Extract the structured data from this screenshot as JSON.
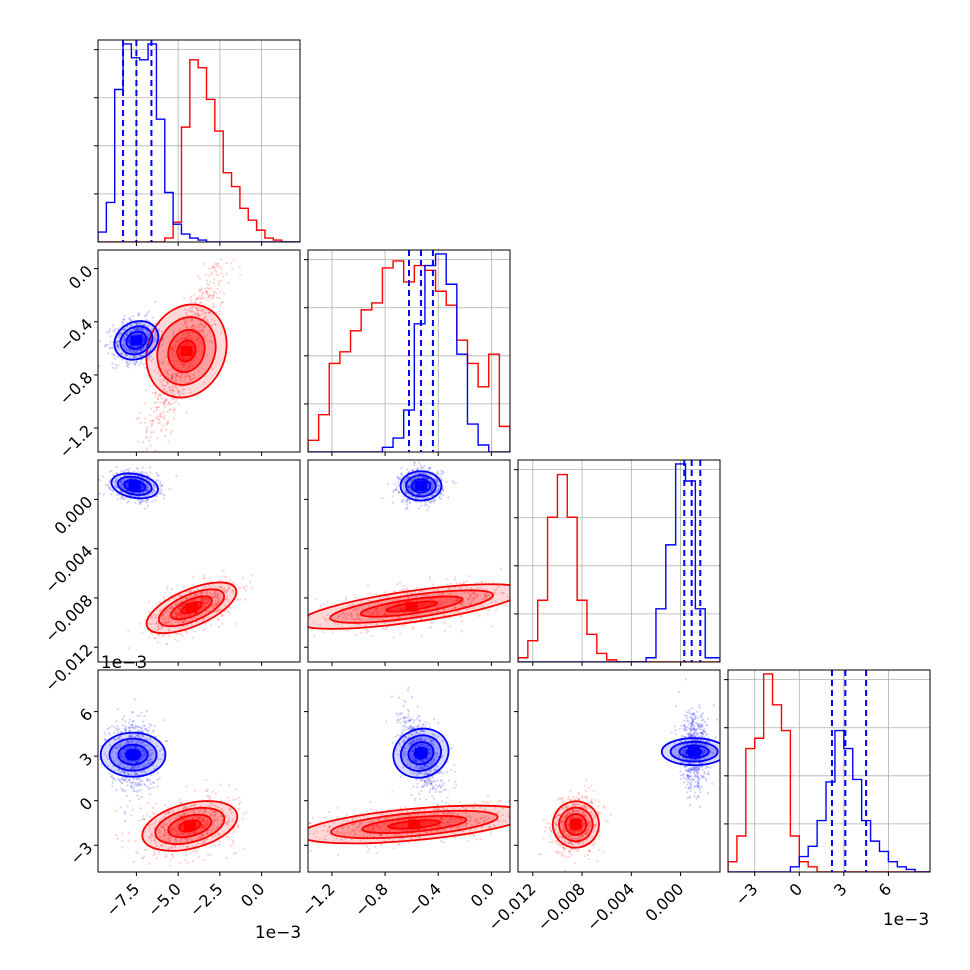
{
  "figure": {
    "description_type": "corner",
    "series_colors": {
      "red": "#ff0000",
      "blue": "#0000ff"
    },
    "quantile_line_color": "#0000ff"
  },
  "chart_data": {
    "type": "corner",
    "series": [
      {
        "name": "red",
        "color": "#ff0000"
      },
      {
        "name": "blue",
        "color": "#0000ff"
      }
    ],
    "parameters": [
      {
        "id": "p0",
        "xlim": [
          -0.0098,
          0.0023
        ],
        "ylim": [
          -1.38,
          0.14
        ],
        "ticks_x": [
          -0.0075,
          -0.005,
          -0.0025,
          0.0
        ],
        "tick_labels_x": [
          "−7.5",
          "−5.0",
          "−2.5",
          "0.0"
        ],
        "offset_label": "1e−3"
      },
      {
        "id": "p1",
        "xlim": [
          -1.38,
          0.14
        ],
        "ticks": [
          -1.2,
          -0.8,
          -0.4,
          0.0
        ],
        "tick_labels": [
          "−1.2",
          "−0.8",
          "−0.4",
          "0.0"
        ]
      },
      {
        "id": "p2",
        "xlim": [
          -0.0132,
          0.0032
        ],
        "ticks": [
          -0.012,
          -0.008,
          -0.004,
          0.0
        ],
        "tick_labels": [
          "−0.012",
          "−0.008",
          "−0.004",
          "0.000"
        ]
      },
      {
        "id": "p3",
        "xlim": [
          -0.0048,
          0.0088
        ],
        "ticks": [
          -0.003,
          0.0,
          0.003,
          0.006
        ],
        "tick_labels": [
          "−3",
          "0",
          "3",
          "6"
        ],
        "offset_label": "1e−3"
      }
    ],
    "offset_label_row3": "1e−3",
    "histograms": [
      {
        "param": 0,
        "bins": [
          -0.0098,
          -0.0093,
          -0.0088,
          -0.0083,
          -0.0078,
          -0.0073,
          -0.0068,
          -0.0063,
          -0.0058,
          -0.0053,
          -0.0048,
          -0.0043,
          -0.0038,
          -0.0033,
          -0.0028,
          -0.0023,
          -0.0018,
          -0.0013,
          -0.0008,
          -0.0003,
          0.0002,
          0.0007,
          0.0012,
          0.0017,
          0.0023
        ],
        "red": [
          0,
          0,
          0,
          0,
          0,
          0,
          0,
          0,
          0.02,
          0.1,
          0.58,
          0.92,
          0.88,
          0.72,
          0.56,
          0.35,
          0.28,
          0.17,
          0.11,
          0.06,
          0.02,
          0.01,
          0,
          0
        ],
        "blue": [
          0.05,
          0.2,
          0.77,
          1.0,
          0.93,
          0.92,
          1.0,
          0.62,
          0.25,
          0.09,
          0.04,
          0.02,
          0.01,
          0,
          0,
          0,
          0,
          0,
          0,
          0,
          0,
          0,
          0,
          0
        ],
        "quantiles_blue": [
          -0.0083,
          -0.0075,
          -0.0066
        ]
      },
      {
        "param": 1,
        "bins": [
          -1.38,
          -1.3,
          -1.22,
          -1.14,
          -1.06,
          -0.98,
          -0.9,
          -0.82,
          -0.74,
          -0.66,
          -0.58,
          -0.5,
          -0.42,
          -0.34,
          -0.26,
          -0.18,
          -0.1,
          -0.02,
          0.06,
          0.14
        ],
        "red": [
          0.05,
          0.16,
          0.38,
          0.43,
          0.52,
          0.61,
          0.64,
          0.79,
          0.82,
          0.73,
          0.8,
          0.78,
          0.69,
          0.63,
          0.48,
          0.38,
          0.28,
          0.42,
          0.11
        ],
        "blue": [
          0,
          0,
          0,
          0,
          0,
          0,
          0,
          0.02,
          0.06,
          0.18,
          0.55,
          0.8,
          0.85,
          0.72,
          0.42,
          0.12,
          0.03,
          0,
          0
        ],
        "quantiles_blue": [
          -0.62,
          -0.53,
          -0.44
        ]
      },
      {
        "param": 2,
        "bins": [
          -0.0132,
          -0.0124,
          -0.0116,
          -0.0108,
          -0.01,
          -0.0092,
          -0.0084,
          -0.0076,
          -0.0068,
          -0.006,
          -0.0052,
          -0.0044,
          -0.0036,
          -0.0028,
          -0.002,
          -0.0012,
          -0.0004,
          0.0004,
          0.0012,
          0.002,
          0.0032
        ],
        "red": [
          0.02,
          0.1,
          0.29,
          0.68,
          0.88,
          0.68,
          0.29,
          0.13,
          0.04,
          0.01,
          0,
          0,
          0,
          0,
          0,
          0,
          0,
          0,
          0,
          0
        ],
        "blue": [
          0,
          0,
          0,
          0,
          0,
          0,
          0,
          0,
          0,
          0,
          0,
          0,
          0,
          0.02,
          0.25,
          0.55,
          0.93,
          0.85,
          0.25,
          0.02
        ],
        "quantiles_blue": [
          0.0003,
          0.0009,
          0.0016
        ]
      },
      {
        "param": 3,
        "bins": [
          -0.0048,
          -0.0042,
          -0.0036,
          -0.003,
          -0.0024,
          -0.0018,
          -0.0012,
          -0.0006,
          0.0,
          0.0006,
          0.0012,
          0.0018,
          0.0024,
          0.003,
          0.0036,
          0.0042,
          0.0048,
          0.0054,
          0.006,
          0.0066,
          0.0072,
          0.0078,
          0.0088
        ],
        "red": [
          0.04,
          0.14,
          0.48,
          0.52,
          0.77,
          0.65,
          0.55,
          0.14,
          0.04,
          0.02,
          0,
          0,
          0,
          0,
          0,
          0,
          0,
          0,
          0,
          0,
          0,
          0
        ],
        "blue": [
          0,
          0,
          0,
          0,
          0,
          0,
          0,
          0.02,
          0.06,
          0.1,
          0.2,
          0.35,
          0.55,
          0.48,
          0.36,
          0.2,
          0.12,
          0.08,
          0.04,
          0.02,
          0.01,
          0
        ],
        "quantiles_blue": [
          0.0022,
          0.0031,
          0.0045
        ]
      }
    ],
    "pairs": [
      {
        "x": 0,
        "y": 1,
        "red": {
          "cx": -0.0045,
          "cy": -0.62,
          "sx": 0.001,
          "sy": 0.28,
          "rho": 0.85
        },
        "blue": {
          "cx": -0.0075,
          "cy": -0.54,
          "sx": 0.0006,
          "sy": 0.07,
          "rho": 0.1
        }
      },
      {
        "x": 0,
        "y": 2,
        "red": {
          "cx": -0.0042,
          "cy": -0.0088,
          "sx": 0.0011,
          "sy": 0.0009,
          "rho": 0.55
        },
        "blue": {
          "cx": -0.0076,
          "cy": 0.0011,
          "sx": 0.0006,
          "sy": 0.0005,
          "rho": -0.2
        }
      },
      {
        "x": 0,
        "y": 3,
        "red": {
          "cx": -0.0043,
          "cy": -0.0017,
          "sx": 0.0012,
          "sy": 0.0008,
          "rho": 0.3
        },
        "blue": {
          "cx": -0.0077,
          "cy": 0.0031,
          "sx": 0.0006,
          "sy": 0.0011,
          "rho": 0.0
        }
      },
      {
        "x": 1,
        "y": 2,
        "red": {
          "cx": -0.6,
          "cy": -0.0087,
          "sx": 0.32,
          "sy": 0.0008,
          "rho": 0.6
        },
        "blue": {
          "cx": -0.53,
          "cy": 0.0011,
          "sx": 0.07,
          "sy": 0.0006,
          "rho": 0.0
        }
      },
      {
        "x": 1,
        "y": 3,
        "red": {
          "cx": -0.58,
          "cy": -0.0016,
          "sx": 0.34,
          "sy": 0.0006,
          "rho": 0.45
        },
        "blue": {
          "cx": -0.53,
          "cy": 0.0032,
          "sx": 0.07,
          "sy": 0.0011,
          "rho": -0.5
        }
      },
      {
        "x": 2,
        "y": 3,
        "red": {
          "cx": -0.0085,
          "cy": -0.0016,
          "sx": 0.0008,
          "sy": 0.0008,
          "rho": 0.2
        },
        "blue": {
          "cx": 0.0011,
          "cy": 0.0033,
          "sx": 0.0005,
          "sy": 0.0011,
          "rho": 0.0
        }
      }
    ]
  }
}
